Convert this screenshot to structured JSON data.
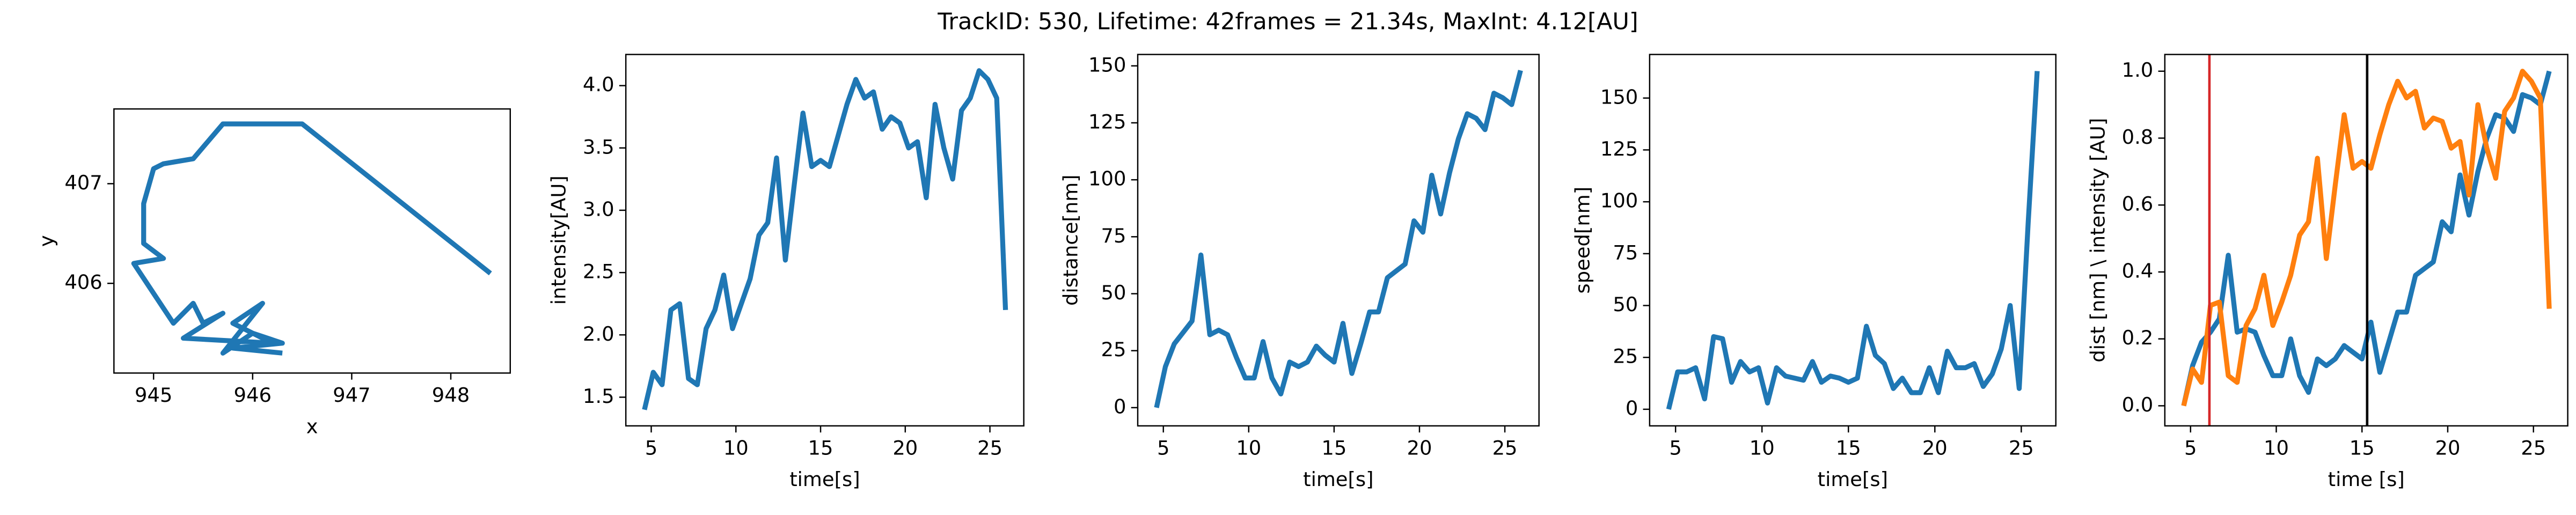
{
  "title": "TrackID: 530, Lifetime: 42frames = 21.34s, MaxInt: 4.12[AU]",
  "chart_data": [
    {
      "type": "line",
      "xlabel": "x",
      "ylabel": "y",
      "x": [
        948.4,
        946.5,
        945.7,
        945.4,
        945.1,
        945.0,
        944.9,
        944.9,
        945.1,
        944.8,
        945.0,
        945.2,
        945.4,
        945.5,
        945.7,
        945.3,
        946.2,
        945.8,
        946.1,
        945.7,
        946.0,
        946.3,
        945.8,
        946.3
      ],
      "series": [
        {
          "color": "#1f77b4",
          "values": [
            406.1,
            407.6,
            407.6,
            407.25,
            407.2,
            407.15,
            406.8,
            406.4,
            406.25,
            406.2,
            405.9,
            405.6,
            405.8,
            405.6,
            405.7,
            405.45,
            405.4,
            405.6,
            405.8,
            405.3,
            405.5,
            405.4,
            405.35,
            405.3
          ]
        }
      ],
      "xlim": [
        944.6,
        948.6
      ],
      "xticks": [
        945,
        946,
        947,
        948
      ],
      "ylim": [
        405.1,
        407.75
      ],
      "yticks": [
        406,
        407
      ]
    },
    {
      "type": "line",
      "xlabel": "time[s]",
      "ylabel": "intensity[AU]",
      "x": [
        4.6,
        5.12,
        5.64,
        6.16,
        6.68,
        7.2,
        7.72,
        8.24,
        8.76,
        9.28,
        9.8,
        10.32,
        10.84,
        11.36,
        11.88,
        12.4,
        12.92,
        13.44,
        13.96,
        14.48,
        15.0,
        15.52,
        16.04,
        16.56,
        17.08,
        17.6,
        18.12,
        18.64,
        19.16,
        19.68,
        20.2,
        20.72,
        21.24,
        21.76,
        22.28,
        22.8,
        23.32,
        23.84,
        24.36,
        24.88,
        25.4,
        25.92
      ],
      "series": [
        {
          "color": "#1f77b4",
          "values": [
            1.4,
            1.7,
            1.6,
            2.2,
            2.25,
            1.65,
            1.6,
            2.05,
            2.2,
            2.48,
            2.05,
            2.25,
            2.45,
            2.8,
            2.9,
            3.42,
            2.6,
            3.2,
            3.78,
            3.35,
            3.4,
            3.35,
            3.6,
            3.85,
            4.05,
            3.9,
            3.95,
            3.65,
            3.75,
            3.7,
            3.5,
            3.55,
            3.1,
            3.85,
            3.5,
            3.25,
            3.8,
            3.9,
            4.12,
            4.05,
            3.9,
            2.2
          ]
        }
      ],
      "xlim": [
        3.5,
        27
      ],
      "xticks": [
        5,
        10,
        15,
        20,
        25
      ],
      "ylim": [
        1.27,
        4.25
      ],
      "yticks": [
        {
          "value": 1.5,
          "label": "1.5"
        },
        {
          "value": 2,
          "label": "2.0"
        },
        {
          "value": 2.5,
          "label": "2.5"
        },
        {
          "value": 3,
          "label": "3.0"
        },
        {
          "value": 3.5,
          "label": "3.5"
        },
        {
          "value": 4,
          "label": "4.0"
        }
      ]
    },
    {
      "type": "line",
      "xlabel": "time[s]",
      "ylabel": "distance[nm]",
      "x": [
        4.6,
        5.12,
        5.64,
        6.16,
        6.68,
        7.2,
        7.72,
        8.24,
        8.76,
        9.28,
        9.8,
        10.32,
        10.84,
        11.36,
        11.88,
        12.4,
        12.92,
        13.44,
        13.96,
        14.48,
        15.0,
        15.52,
        16.04,
        16.56,
        17.08,
        17.6,
        18.12,
        18.64,
        19.16,
        19.68,
        20.2,
        20.72,
        21.24,
        21.76,
        22.28,
        22.8,
        23.32,
        23.84,
        24.36,
        24.88,
        25.4,
        25.92
      ],
      "series": [
        {
          "color": "#1f77b4",
          "values": [
            0,
            18,
            28,
            33,
            38,
            67,
            32,
            34,
            32,
            22,
            13,
            13,
            29,
            13,
            6,
            20,
            18,
            20,
            27,
            23,
            20,
            37,
            15,
            28,
            42,
            42,
            57,
            60,
            63,
            82,
            77,
            102,
            85,
            103,
            118,
            129,
            127,
            122,
            138,
            136,
            133,
            148
          ]
        }
      ],
      "xlim": [
        3.5,
        27
      ],
      "xticks": [
        5,
        10,
        15,
        20,
        25
      ],
      "ylim": [
        -8,
        155
      ],
      "yticks": [
        0,
        25,
        50,
        75,
        100,
        125,
        150
      ]
    },
    {
      "type": "line",
      "xlabel": "time[s]",
      "ylabel": "speed[nm]",
      "x": [
        4.6,
        5.12,
        5.64,
        6.16,
        6.68,
        7.2,
        7.72,
        8.24,
        8.76,
        9.28,
        9.8,
        10.32,
        10.84,
        11.36,
        11.88,
        12.4,
        12.92,
        13.44,
        13.96,
        14.48,
        15.0,
        15.52,
        16.04,
        16.56,
        17.08,
        17.6,
        18.12,
        18.64,
        19.16,
        19.68,
        20.2,
        20.72,
        21.24,
        21.76,
        22.28,
        22.8,
        23.32,
        23.84,
        24.36,
        24.88,
        25.4,
        25.92
      ],
      "series": [
        {
          "color": "#1f77b4",
          "values": [
            0,
            18,
            18,
            20,
            5,
            35,
            34,
            13,
            23,
            18,
            20,
            3,
            20,
            16,
            15,
            14,
            23,
            13,
            16,
            15,
            13,
            15,
            40,
            26,
            22,
            10,
            15,
            8,
            8,
            20,
            8,
            28,
            20,
            20,
            22,
            11,
            17,
            29,
            50,
            10,
            90,
            163
          ]
        }
      ],
      "xlim": [
        3.5,
        27
      ],
      "xticks": [
        5,
        10,
        15,
        20,
        25
      ],
      "ylim": [
        -8,
        171
      ],
      "yticks": [
        0,
        25,
        50,
        75,
        100,
        125,
        150
      ]
    },
    {
      "type": "line",
      "xlabel": "time [s]",
      "ylabel": "dist [nm] \\ intensity [AU]",
      "x": [
        4.6,
        5.12,
        5.64,
        6.16,
        6.68,
        7.2,
        7.72,
        8.24,
        8.76,
        9.28,
        9.8,
        10.32,
        10.84,
        11.36,
        11.88,
        12.4,
        12.92,
        13.44,
        13.96,
        14.48,
        15.0,
        15.52,
        16.04,
        16.56,
        17.08,
        17.6,
        18.12,
        18.64,
        19.16,
        19.68,
        20.2,
        20.72,
        21.24,
        21.76,
        22.28,
        22.8,
        23.32,
        23.84,
        24.36,
        24.88,
        25.4,
        25.92
      ],
      "series": [
        {
          "color": "#1f77b4",
          "values": [
            0,
            0.12,
            0.19,
            0.22,
            0.26,
            0.45,
            0.22,
            0.23,
            0.22,
            0.15,
            0.09,
            0.09,
            0.2,
            0.09,
            0.04,
            0.14,
            0.12,
            0.14,
            0.18,
            0.16,
            0.14,
            0.25,
            0.1,
            0.19,
            0.28,
            0.28,
            0.39,
            0.41,
            0.43,
            0.55,
            0.52,
            0.69,
            0.57,
            0.7,
            0.8,
            0.87,
            0.86,
            0.82,
            0.93,
            0.92,
            0.9,
            1.0
          ]
        },
        {
          "color": "#ff7f0e",
          "values": [
            0,
            0.11,
            0.07,
            0.3,
            0.31,
            0.09,
            0.07,
            0.24,
            0.29,
            0.39,
            0.24,
            0.31,
            0.39,
            0.51,
            0.55,
            0.74,
            0.44,
            0.66,
            0.87,
            0.71,
            0.73,
            0.71,
            0.81,
            0.9,
            0.97,
            0.92,
            0.94,
            0.83,
            0.86,
            0.85,
            0.77,
            0.79,
            0.63,
            0.9,
            0.77,
            0.68,
            0.88,
            0.92,
            1.0,
            0.97,
            0.92,
            0.29
          ]
        }
      ],
      "vlines": [
        {
          "x": 6.1,
          "color": "#d62728"
        },
        {
          "x": 15.3,
          "color": "#000000"
        }
      ],
      "xlim": [
        3.5,
        27
      ],
      "xticks": [
        5,
        10,
        15,
        20,
        25
      ],
      "ylim": [
        -0.06,
        1.05
      ],
      "yticks": [
        {
          "value": 0,
          "label": "0.0"
        },
        {
          "value": 0.2,
          "label": "0.2"
        },
        {
          "value": 0.4,
          "label": "0.4"
        },
        {
          "value": 0.6,
          "label": "0.6"
        },
        {
          "value": 0.8,
          "label": "0.8"
        },
        {
          "value": 1,
          "label": "1.0"
        }
      ]
    }
  ]
}
